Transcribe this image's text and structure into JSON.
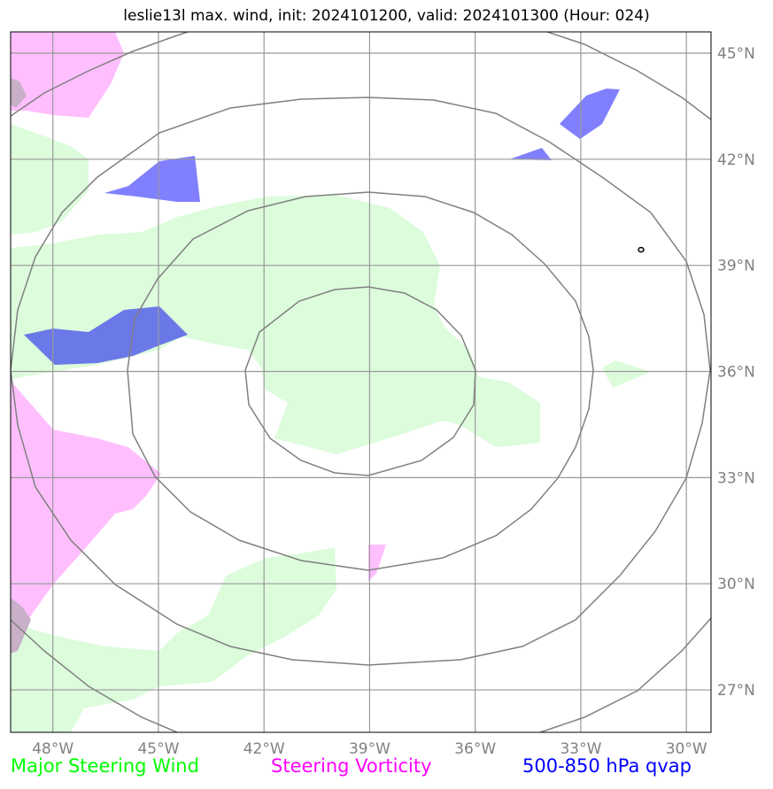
{
  "title": "leslie13l max. wind, init: 2024101200, valid: 2024101300 (Hour: 024)",
  "map": {
    "lon_ticks": [
      "48°W",
      "45°W",
      "42°W",
      "39°W",
      "36°W",
      "33°W",
      "30°W"
    ],
    "lat_ticks": [
      "45°N",
      "42°N",
      "39°N",
      "36°N",
      "33°N",
      "30°N",
      "27°N"
    ],
    "lon_range": [
      -49.2,
      -29.3
    ],
    "lat_range": [
      25.8,
      45.6
    ],
    "gridlines": true,
    "center": {
      "lon": -39.0,
      "lat": 36.0
    },
    "range_rings": 4,
    "colors": {
      "steering_wind_fill": "#dcfcdc",
      "vorticity_fill": "#ffbfff",
      "qvap_fill": "#8080ff",
      "ring_line": "#808080",
      "grid_line": "#999999"
    }
  },
  "legend": {
    "major_steering_wind": {
      "label": "Major Steering Wind",
      "color": "#00ff00"
    },
    "steering_vorticity": {
      "label": "Steering Vorticity",
      "color": "#ff00ff"
    },
    "qvap": {
      "label": "500-850 hPa qvap",
      "color": "#0000ff"
    }
  }
}
